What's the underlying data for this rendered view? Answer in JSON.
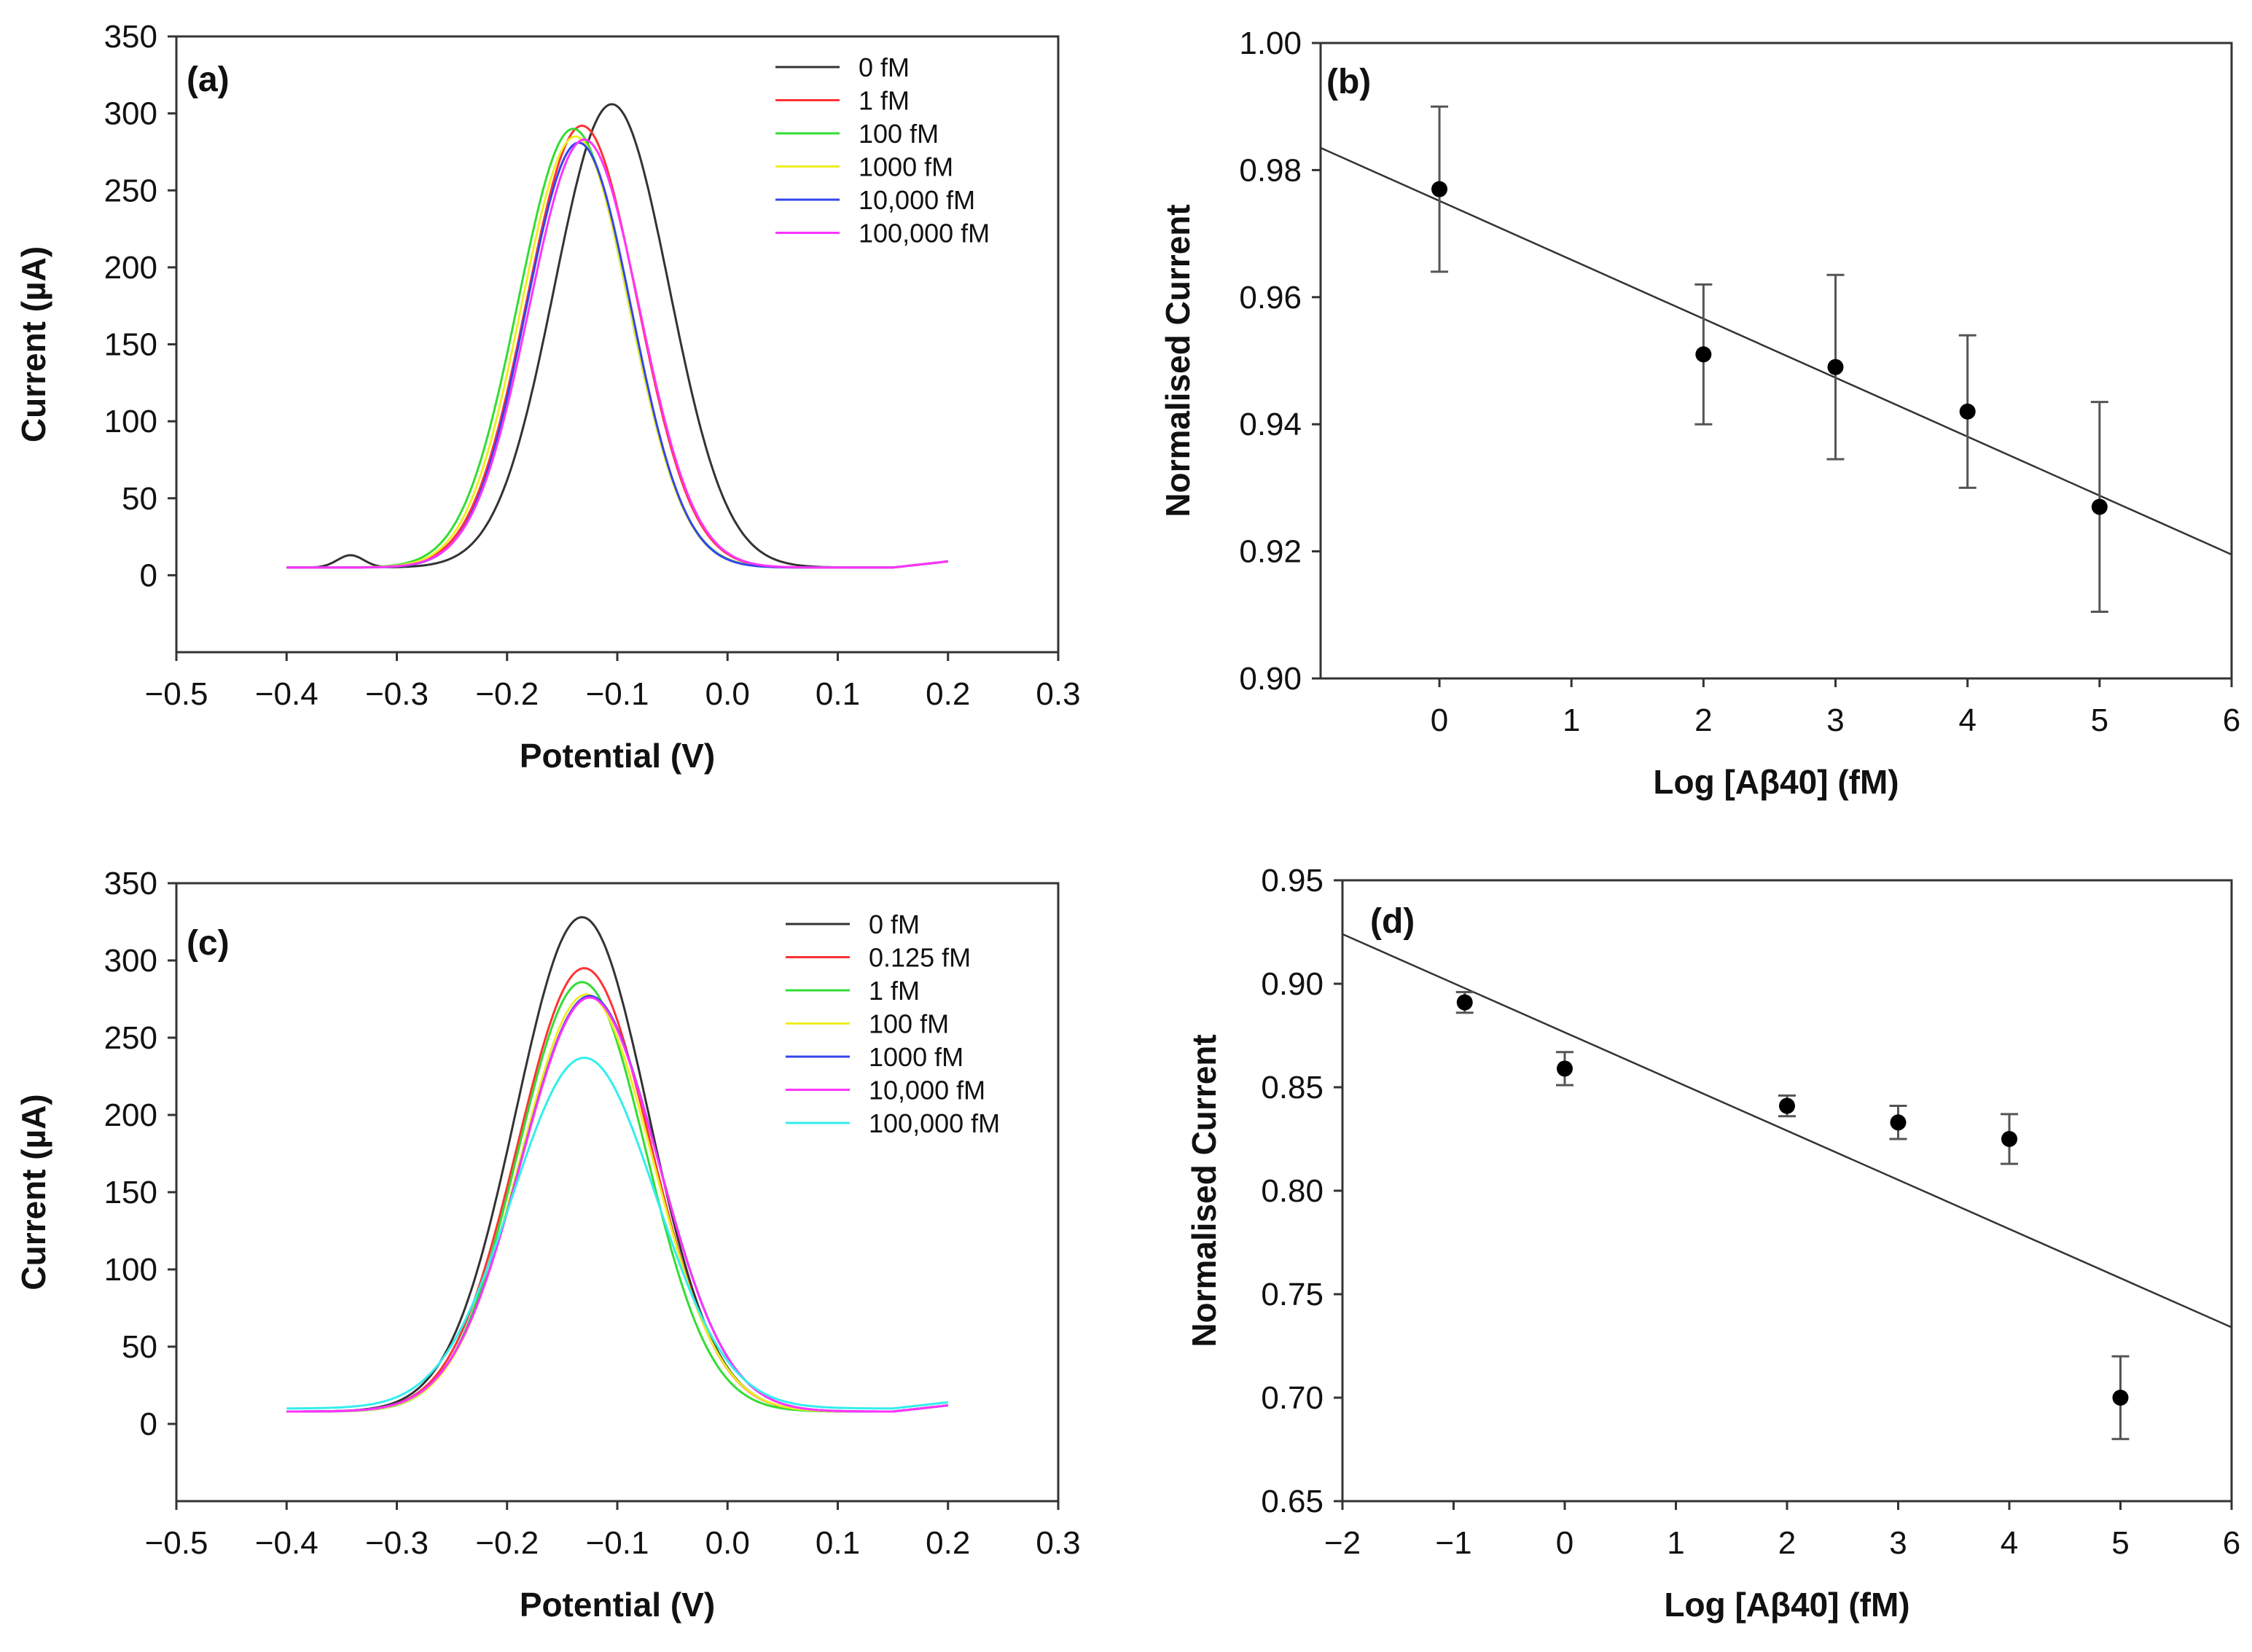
{
  "chart_data": [
    {
      "panel": "(a)",
      "type": "line",
      "xlabel": "Potential (V)",
      "ylabel": "Current (µA)",
      "xlim": [
        -0.5,
        0.3
      ],
      "ylim": [
        -50,
        350
      ],
      "xticks": [
        "−0.5",
        "−0.4",
        "−0.3",
        "−0.2",
        "−0.1",
        "0.0",
        "0.1",
        "0.2",
        "0.3"
      ],
      "yticks": [
        "0",
        "50",
        "100",
        "150",
        "200",
        "250",
        "300",
        "350"
      ],
      "legend_position": "top-right",
      "x_range": [
        -0.4,
        0.2
      ],
      "series": [
        {
          "name": "0 fM",
          "color": "#333333",
          "peak_potential": -0.105,
          "peak_current": 306,
          "width": 0.052,
          "baseline": 5
        },
        {
          "name": "1 fM",
          "color": "#ff3333",
          "peak_potential": -0.132,
          "peak_current": 292,
          "width": 0.05,
          "baseline": 5
        },
        {
          "name": "100 fM",
          "color": "#33dd33",
          "peak_potential": -0.14,
          "peak_current": 290,
          "width": 0.05,
          "baseline": 5
        },
        {
          "name": "1000 fM",
          "color": "#eeee22",
          "peak_potential": -0.138,
          "peak_current": 285,
          "width": 0.049,
          "baseline": 5
        },
        {
          "name": "10,000 fM",
          "color": "#3344ee",
          "peak_potential": -0.135,
          "peak_current": 281,
          "width": 0.048,
          "baseline": 5
        },
        {
          "name": "100,000 fM",
          "color": "#ff33ff",
          "peak_potential": -0.13,
          "peak_current": 283,
          "width": 0.05,
          "baseline": 5
        }
      ]
    },
    {
      "panel": "(b)",
      "type": "scatter",
      "xlabel": "Log [Aβ40] (fM)",
      "ylabel": "Normalised Current",
      "xlim": [
        -0.9,
        6
      ],
      "ylim": [
        0.9,
        1.0
      ],
      "xticks": [
        "0",
        "1",
        "2",
        "3",
        "4",
        "5",
        "6"
      ],
      "yticks": [
        "0.90",
        "0.92",
        "0.94",
        "0.96",
        "0.98",
        "1.00"
      ],
      "x": [
        0,
        2,
        3,
        4,
        5
      ],
      "y": [
        0.977,
        0.951,
        0.949,
        0.942,
        0.927
      ],
      "error": [
        0.013,
        0.011,
        0.0145,
        0.012,
        0.0165
      ],
      "fit": {
        "x": [
          -0.9,
          6
        ],
        "y": [
          0.9835,
          0.9195
        ]
      }
    },
    {
      "panel": "(c)",
      "type": "line",
      "xlabel": "Potential (V)",
      "ylabel": "Current (µA)",
      "xlim": [
        -0.5,
        0.3
      ],
      "ylim": [
        -50,
        350
      ],
      "xticks": [
        "−0.5",
        "−0.4",
        "−0.3",
        "−0.2",
        "−0.1",
        "0.0",
        "0.1",
        "0.2",
        "0.3"
      ],
      "yticks": [
        "0",
        "50",
        "100",
        "150",
        "200",
        "250",
        "300",
        "350"
      ],
      "legend_position": "top-right",
      "x_range": [
        -0.4,
        0.2
      ],
      "series": [
        {
          "name": "0 fM",
          "color": "#333333",
          "peak_potential": -0.132,
          "peak_current": 328,
          "width": 0.06,
          "baseline": 8
        },
        {
          "name": "0.125 fM",
          "color": "#ff3333",
          "peak_potential": -0.13,
          "peak_current": 295,
          "width": 0.06,
          "baseline": 8
        },
        {
          "name": "1 fM",
          "color": "#33dd33",
          "peak_potential": -0.132,
          "peak_current": 286,
          "width": 0.058,
          "baseline": 8
        },
        {
          "name": "100 fM",
          "color": "#eeee22",
          "peak_potential": -0.128,
          "peak_current": 278,
          "width": 0.06,
          "baseline": 8
        },
        {
          "name": "1000 fM",
          "color": "#3344ee",
          "peak_potential": -0.125,
          "peak_current": 277,
          "width": 0.062,
          "baseline": 8
        },
        {
          "name": "10,000 fM",
          "color": "#ff33ff",
          "peak_potential": -0.125,
          "peak_current": 276,
          "width": 0.062,
          "baseline": 8
        },
        {
          "name": "100,000 fM",
          "color": "#33eeee",
          "peak_potential": -0.13,
          "peak_current": 237,
          "width": 0.065,
          "baseline": 10
        }
      ]
    },
    {
      "panel": "(d)",
      "type": "scatter",
      "xlabel": "Log [Aβ40] (fM)",
      "ylabel": "Normalised Current",
      "xlim": [
        -2,
        6
      ],
      "ylim": [
        0.65,
        0.95
      ],
      "xticks": [
        "−2",
        "−1",
        "0",
        "1",
        "2",
        "3",
        "4",
        "5",
        "6"
      ],
      "yticks": [
        "0.65",
        "0.70",
        "0.75",
        "0.80",
        "0.85",
        "0.90",
        "0.95"
      ],
      "x": [
        -0.9,
        0,
        2,
        3,
        4,
        5
      ],
      "y": [
        0.891,
        0.859,
        0.841,
        0.833,
        0.825,
        0.7
      ],
      "error": [
        0.005,
        0.008,
        0.005,
        0.008,
        0.012,
        0.02
      ],
      "fit": {
        "x": [
          -2,
          6
        ],
        "y": [
          0.924,
          0.734
        ]
      }
    }
  ]
}
